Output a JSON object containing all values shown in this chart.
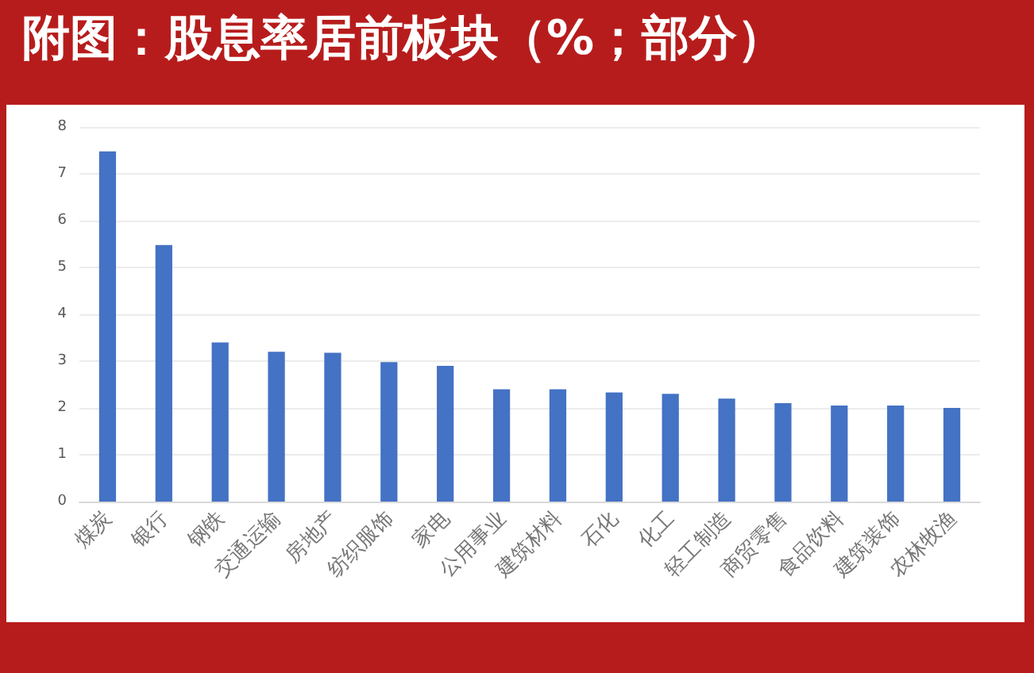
{
  "chart_data": {
    "type": "bar",
    "title": "附图：股息率居前板块（%；部分）",
    "categories": [
      "煤炭",
      "银行",
      "钢铁",
      "交通运输",
      "房地产",
      "纺织服饰",
      "家电",
      "公用事业",
      "建筑材料",
      "石化",
      "化工",
      "轻工制造",
      "商贸零售",
      "食品饮料",
      "建筑装饰",
      "农林牧渔"
    ],
    "values": [
      7.48,
      5.48,
      3.4,
      3.2,
      3.18,
      2.98,
      2.9,
      2.4,
      2.4,
      2.33,
      2.3,
      2.2,
      2.1,
      2.05,
      2.05,
      2.0
    ],
    "color": "#4472c4",
    "ylim": [
      0,
      8
    ],
    "yticks": [
      0,
      1,
      2,
      3,
      4,
      5,
      6,
      7,
      8
    ],
    "grid": "y"
  }
}
